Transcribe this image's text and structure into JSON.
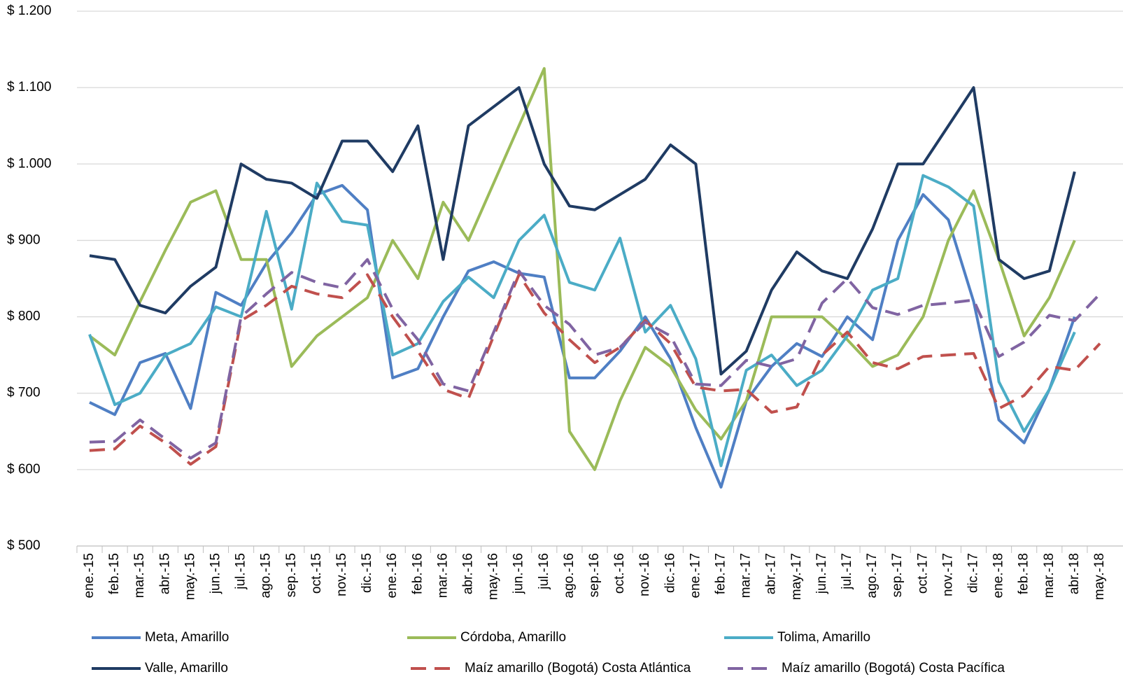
{
  "chart_data": {
    "type": "line",
    "categories": [
      "ene.-15",
      "feb.-15",
      "mar.-15",
      "abr.-15",
      "may.-15",
      "jun.-15",
      "jul.-15",
      "ago.-15",
      "sep.-15",
      "oct.-15",
      "nov.-15",
      "dic.-15",
      "ene.-16",
      "feb.-16",
      "mar.-16",
      "abr.-16",
      "may.-16",
      "jun.-16",
      "jul.-16",
      "ago.-16",
      "sep.-16",
      "oct.-16",
      "nov.-16",
      "dic.-16",
      "ene.-17",
      "feb.-17",
      "mar.-17",
      "abr.-17",
      "may.-17",
      "jun.-17",
      "jul.-17",
      "ago.-17",
      "sep.-17",
      "oct.-17",
      "nov.-17",
      "dic.-17",
      "ene.-18",
      "feb.-18",
      "mar.-18",
      "abr.-18",
      "may.-18"
    ],
    "series": [
      {
        "name": "Meta, Amarillo",
        "color": "#4f7fc4",
        "dashed": false,
        "values": [
          688,
          672,
          740,
          752,
          680,
          832,
          815,
          870,
          910,
          960,
          972,
          940,
          720,
          732,
          800,
          860,
          872,
          857,
          852,
          720,
          720,
          755,
          800,
          745,
          655,
          577,
          690,
          735,
          765,
          748,
          800,
          770,
          900,
          960,
          927,
          820,
          665,
          635,
          705,
          800,
          null
        ]
      },
      {
        "name": "Córdoba, Amarillo",
        "color": "#9bbb59",
        "dashed": false,
        "values": [
          775,
          750,
          820,
          887,
          950,
          965,
          875,
          875,
          735,
          775,
          800,
          825,
          900,
          850,
          950,
          900,
          975,
          1050,
          1125,
          650,
          600,
          690,
          760,
          735,
          678,
          640,
          690,
          800,
          800,
          800,
          770,
          735,
          750,
          800,
          900,
          965,
          875,
          775,
          825,
          900,
          null
        ]
      },
      {
        "name": "Tolima, Amarillo",
        "color": "#4bacc6",
        "dashed": false,
        "values": [
          777,
          685,
          700,
          750,
          765,
          813,
          800,
          938,
          810,
          975,
          925,
          920,
          750,
          765,
          820,
          852,
          825,
          900,
          933,
          845,
          835,
          903,
          780,
          815,
          745,
          605,
          730,
          750,
          710,
          730,
          775,
          835,
          850,
          985,
          970,
          945,
          715,
          650,
          705,
          780,
          null
        ]
      },
      {
        "name": "Valle, Amarillo",
        "color": "#1f3b63",
        "dashed": false,
        "values": [
          880,
          875,
          815,
          805,
          840,
          865,
          1000,
          980,
          975,
          955,
          1030,
          1030,
          990,
          1050,
          875,
          1050,
          1075,
          1100,
          1000,
          945,
          940,
          960,
          980,
          1025,
          1000,
          725,
          755,
          835,
          885,
          860,
          850,
          915,
          1000,
          1000,
          1050,
          1100,
          875,
          850,
          860,
          990,
          null
        ]
      },
      {
        "name": "Maíz amarillo (Bogotá) Costa Atlántica",
        "color": "#c0504d",
        "dashed": true,
        "values": [
          625,
          627,
          657,
          635,
          607,
          630,
          795,
          815,
          840,
          830,
          825,
          855,
          800,
          755,
          705,
          693,
          775,
          855,
          805,
          770,
          740,
          760,
          795,
          765,
          708,
          703,
          705,
          675,
          682,
          750,
          780,
          740,
          732,
          748,
          750,
          752,
          680,
          697,
          735,
          730,
          765
        ]
      },
      {
        "name": "Maíz amarillo (Bogotá) Costa Pacífica",
        "color": "#8064a2",
        "dashed": true,
        "values": [
          636,
          637,
          665,
          640,
          615,
          635,
          800,
          830,
          858,
          845,
          838,
          875,
          810,
          770,
          712,
          703,
          780,
          860,
          815,
          790,
          750,
          760,
          793,
          775,
          712,
          710,
          743,
          735,
          745,
          818,
          850,
          812,
          803,
          815,
          818,
          822,
          748,
          767,
          802,
          795,
          830
        ]
      }
    ],
    "ylim": [
      500,
      1200
    ],
    "yticks": [
      {
        "value": 500,
        "label": "$ 500"
      },
      {
        "value": 600,
        "label": "$ 600"
      },
      {
        "value": 700,
        "label": "$ 700"
      },
      {
        "value": 800,
        "label": "$ 800"
      },
      {
        "value": 900,
        "label": "$ 900"
      },
      {
        "value": 1000,
        "label": "$ 1.000"
      },
      {
        "value": 1100,
        "label": "$ 1.100"
      },
      {
        "value": 1200,
        "label": "$ 1.200"
      }
    ],
    "grid": true,
    "legend": "bottom"
  }
}
